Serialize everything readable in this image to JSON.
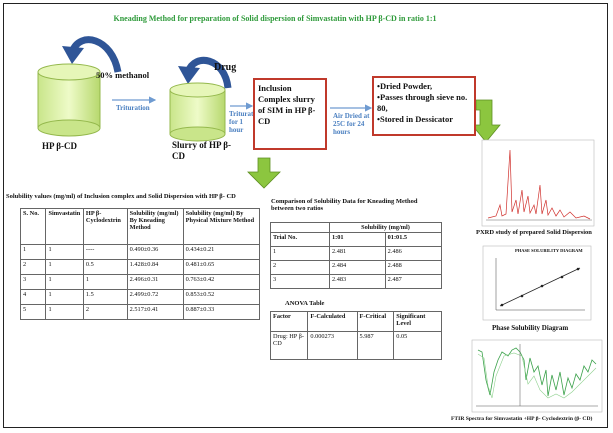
{
  "title": "Kneading Method for preparation of Solid dispersion of Simvastatin with HP β-CD in ratio 1:1",
  "flow": {
    "solvent": "50% methanol",
    "step1": "Trituration",
    "start": "HP β-CD",
    "drug": "Drug",
    "step2": "Trituration for 1 hour",
    "slurry": "Slurry of HP β-CD",
    "complex": "Inclusion Complex slurry of SIM in HP β-CD",
    "step3": "Air Dried at 25C for 24 hours",
    "result": [
      "•Dried Powder,",
      "•Passes through sieve no. 80,",
      "•Stored in Dessicator"
    ]
  },
  "solubility_table": {
    "title": "Solubility values (mg/ml) of Inclusion complex and Solid Dispersion with HP β- CD",
    "header": [
      "S. No.",
      "Simvastatin",
      "HP β-Cyclodextrin",
      "Solubility (mg/ml) By Kneading Method",
      "Solubility (mg/ml) By Physical Mixture Method"
    ],
    "rows": [
      [
        "1",
        "1",
        "----",
        "0.490±0.36",
        "0.434±0.21"
      ],
      [
        "2",
        "1",
        "0.5",
        "1.428±0.84",
        "0.481±0.65"
      ],
      [
        "3",
        "1",
        "1",
        "2.496±0.31",
        "0.763±0.42"
      ],
      [
        "4",
        "1",
        "1.5",
        "2.499±0.72",
        "0.853±0.52"
      ],
      [
        "5",
        "1",
        "2",
        "2.517±0.41",
        "0.887±0.33"
      ]
    ]
  },
  "comparison_table": {
    "title": "Comparison of Solubility Data for Kneading Method between two ratios",
    "group_header": "Solubility (mg/ml)",
    "header": [
      "Trial No.",
      "1:01",
      "01:01.5"
    ],
    "rows": [
      [
        "1",
        "2.481",
        "2.486"
      ],
      [
        "2",
        "2.484",
        "2.488"
      ],
      [
        "3",
        "2.483",
        "2.487"
      ]
    ]
  },
  "anova_table": {
    "title": "ANOVA Table",
    "header": [
      "Factor",
      "F-Calculated",
      "F-Critical",
      "Significant Level"
    ],
    "rows": [
      [
        "Drug: HP β-CD",
        "0.000273",
        "5.987",
        "0.05"
      ]
    ]
  },
  "figures": {
    "pxrd": "PXRD study of prepared  Solid Dispersion",
    "phase_title": "PHASE SOLUBILITY DIAGRAM",
    "phase": "Phase Solubility Diagram",
    "ftir": "FTIR Spectra for Simvastatin +HP β- Cyclodextrin (β- CD)"
  }
}
